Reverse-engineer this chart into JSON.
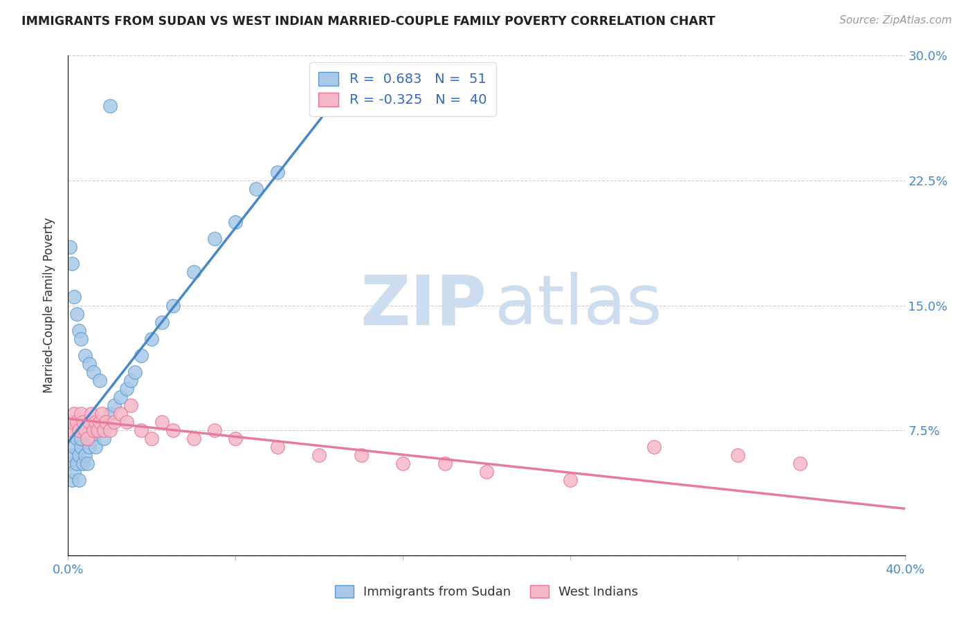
{
  "title": "IMMIGRANTS FROM SUDAN VS WEST INDIAN MARRIED-COUPLE FAMILY POVERTY CORRELATION CHART",
  "source": "Source: ZipAtlas.com",
  "ylabel": "Married-Couple Family Poverty",
  "xlim": [
    0.0,
    0.4
  ],
  "ylim": [
    0.0,
    0.3
  ],
  "sudan_color": "#a8c8e8",
  "sudan_edge_color": "#5599cc",
  "wi_color": "#f5b8c8",
  "wi_edge_color": "#e87090",
  "sudan_line_color": "#4488cc",
  "wi_line_color": "#e878a0",
  "legend_R1": "0.683",
  "legend_N1": "51",
  "legend_R2": "-0.325",
  "legend_N2": "40",
  "sudan_x": [
    0.001,
    0.002,
    0.002,
    0.003,
    0.003,
    0.004,
    0.004,
    0.005,
    0.005,
    0.006,
    0.006,
    0.007,
    0.007,
    0.008,
    0.009,
    0.01,
    0.01,
    0.011,
    0.012,
    0.013,
    0.014,
    0.015,
    0.016,
    0.017,
    0.018,
    0.02,
    0.022,
    0.025,
    0.028,
    0.03,
    0.032,
    0.035,
    0.04,
    0.045,
    0.05,
    0.06,
    0.07,
    0.08,
    0.09,
    0.1,
    0.001,
    0.002,
    0.003,
    0.004,
    0.005,
    0.006,
    0.008,
    0.01,
    0.012,
    0.015,
    0.02
  ],
  "sudan_y": [
    0.055,
    0.045,
    0.06,
    0.05,
    0.065,
    0.055,
    0.07,
    0.045,
    0.06,
    0.065,
    0.07,
    0.055,
    0.075,
    0.06,
    0.055,
    0.065,
    0.07,
    0.075,
    0.07,
    0.065,
    0.075,
    0.08,
    0.075,
    0.07,
    0.08,
    0.085,
    0.09,
    0.095,
    0.1,
    0.105,
    0.11,
    0.12,
    0.13,
    0.14,
    0.15,
    0.17,
    0.19,
    0.2,
    0.22,
    0.23,
    0.185,
    0.175,
    0.155,
    0.145,
    0.135,
    0.13,
    0.12,
    0.115,
    0.11,
    0.105,
    0.27
  ],
  "wi_x": [
    0.001,
    0.002,
    0.003,
    0.004,
    0.005,
    0.006,
    0.007,
    0.008,
    0.009,
    0.01,
    0.011,
    0.012,
    0.013,
    0.014,
    0.015,
    0.016,
    0.017,
    0.018,
    0.02,
    0.022,
    0.025,
    0.028,
    0.03,
    0.035,
    0.04,
    0.045,
    0.05,
    0.06,
    0.07,
    0.08,
    0.1,
    0.12,
    0.14,
    0.16,
    0.18,
    0.2,
    0.24,
    0.28,
    0.32,
    0.35
  ],
  "wi_y": [
    0.075,
    0.08,
    0.085,
    0.08,
    0.075,
    0.085,
    0.08,
    0.075,
    0.07,
    0.08,
    0.085,
    0.075,
    0.08,
    0.075,
    0.08,
    0.085,
    0.075,
    0.08,
    0.075,
    0.08,
    0.085,
    0.08,
    0.09,
    0.075,
    0.07,
    0.08,
    0.075,
    0.07,
    0.075,
    0.07,
    0.065,
    0.06,
    0.06,
    0.055,
    0.055,
    0.05,
    0.045,
    0.065,
    0.06,
    0.055
  ],
  "sudan_line_x": [
    0.0,
    0.135
  ],
  "sudan_line_y_start": 0.068,
  "sudan_line_y_end": 0.285,
  "wi_line_x": [
    0.0,
    0.4
  ],
  "wi_line_y_start": 0.082,
  "wi_line_y_end": 0.028
}
